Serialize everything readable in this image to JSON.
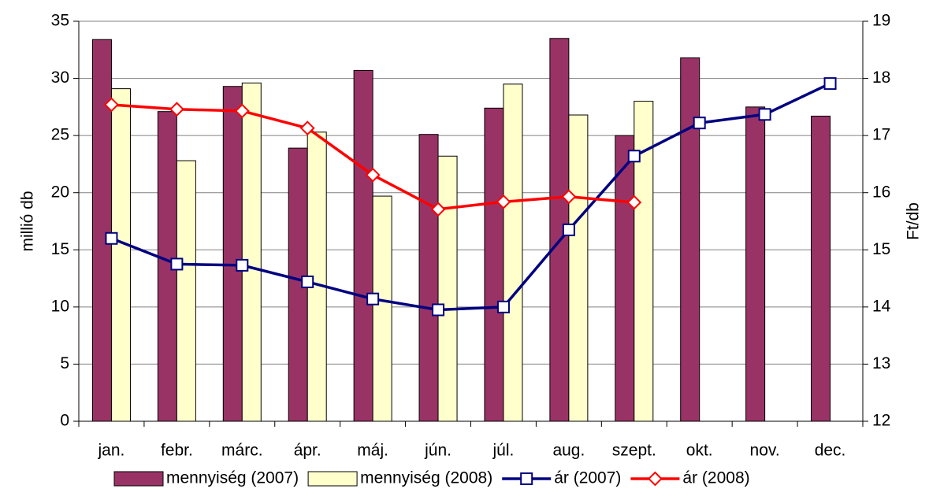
{
  "chart_data": {
    "type": "bar",
    "categories": [
      "jan.",
      "febr.",
      "márc.",
      "ápr.",
      "máj.",
      "jún.",
      "júl.",
      "aug.",
      "szept.",
      "okt.",
      "nov.",
      "dec."
    ],
    "series": [
      {
        "name": "mennyiség (2007)",
        "type": "bar",
        "color": "#993366",
        "values": [
          33.4,
          27.1,
          29.3,
          23.9,
          30.7,
          25.1,
          27.4,
          33.5,
          25.0,
          31.8,
          27.5,
          26.7
        ]
      },
      {
        "name": "mennyiség (2008)",
        "type": "bar",
        "color": "#ffffcc",
        "values": [
          29.1,
          22.8,
          29.6,
          25.3,
          19.7,
          23.2,
          29.5,
          26.8,
          28.0,
          null,
          null,
          null
        ]
      },
      {
        "name": "ár (2007)",
        "type": "line",
        "marker": "square",
        "axis": "y2",
        "color": "#000080",
        "values": [
          15.2,
          14.75,
          14.73,
          14.44,
          14.14,
          13.95,
          14.0,
          15.35,
          16.64,
          17.22,
          17.37,
          17.91
        ]
      },
      {
        "name": "ár (2008)",
        "type": "line",
        "marker": "diamond",
        "axis": "y2",
        "color": "#ff0000",
        "values": [
          17.54,
          17.46,
          17.43,
          17.13,
          16.31,
          15.71,
          15.84,
          15.93,
          15.83,
          null,
          null,
          null
        ]
      }
    ],
    "y_label": "millió db",
    "y2_label": "Ft/db",
    "ylim": [
      0,
      35
    ],
    "yticks": [
      0,
      5,
      10,
      15,
      20,
      25,
      30,
      35
    ],
    "y2lim": [
      12,
      19
    ],
    "y2ticks": [
      12,
      13,
      14,
      15,
      16,
      17,
      18,
      19
    ],
    "grid": true,
    "legend": "bottom"
  }
}
